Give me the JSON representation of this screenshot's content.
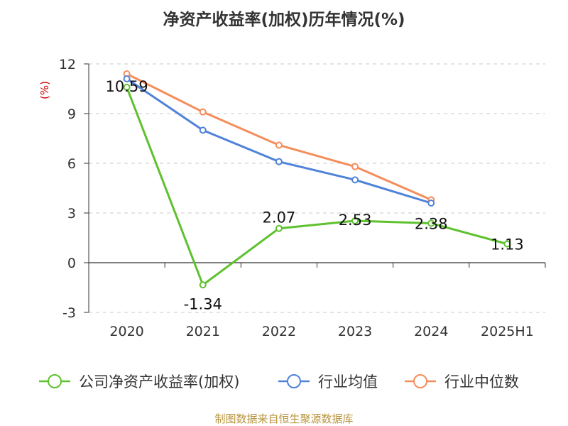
{
  "title": "净资产收益率(加权)历年情况(%)",
  "source": "制图数据来自恒生聚源数据库",
  "chart_data": {
    "type": "line",
    "title": "净资产收益率(加权)历年情况(%)",
    "ylabel": "(%)",
    "xlabel": "",
    "categories": [
      "2020",
      "2021",
      "2022",
      "2023",
      "2024",
      "2025H1"
    ],
    "ylim": [
      -3,
      12
    ],
    "yticks": [
      -3,
      0,
      3,
      6,
      9,
      12
    ],
    "grid": true,
    "legend_position": "bottom",
    "series": [
      {
        "name": "公司净资产收益率(加权)",
        "color": "#5ec12e",
        "values": [
          10.59,
          -1.34,
          2.07,
          2.53,
          2.38,
          1.13
        ],
        "data_labels": [
          "10.59",
          "-1.34",
          "2.07",
          "2.53",
          "2.38",
          "1.13"
        ]
      },
      {
        "name": "行业均值",
        "color": "#4f82d9",
        "values": [
          11.1,
          8.0,
          6.1,
          5.0,
          3.6,
          null
        ]
      },
      {
        "name": "行业中位数",
        "color": "#f58d5b",
        "values": [
          11.4,
          9.1,
          7.1,
          5.8,
          3.8,
          null
        ]
      }
    ]
  }
}
